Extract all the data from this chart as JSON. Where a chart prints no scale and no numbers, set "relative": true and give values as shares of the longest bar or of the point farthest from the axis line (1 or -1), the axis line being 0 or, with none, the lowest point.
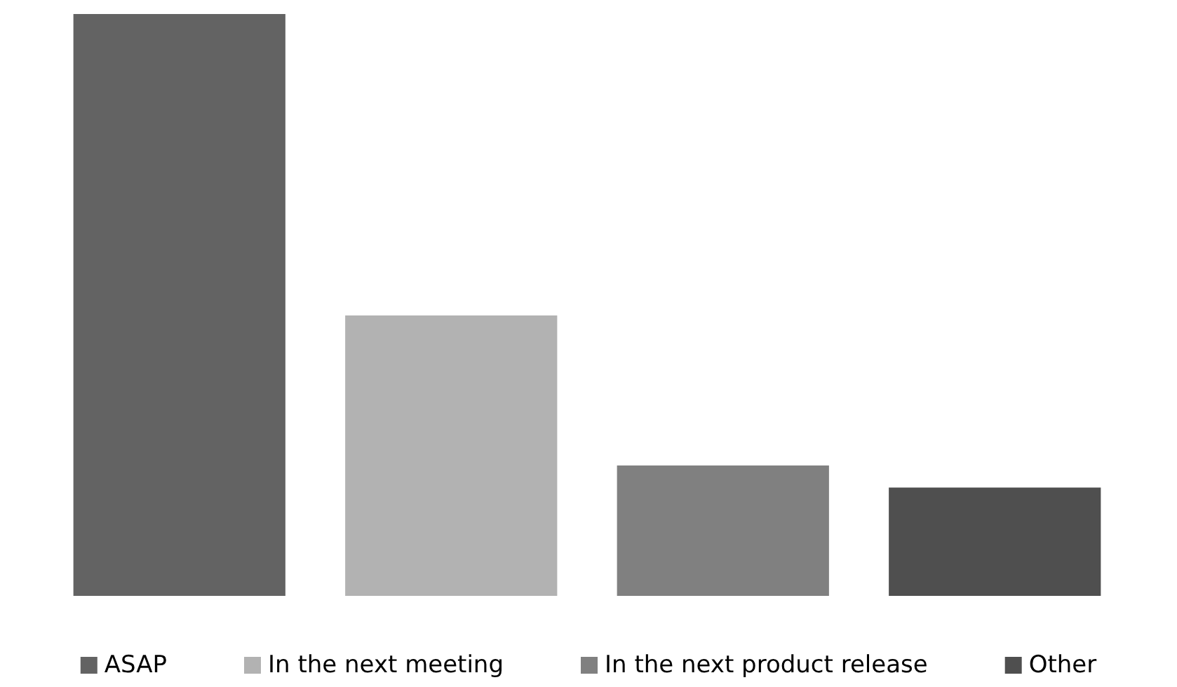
{
  "chart_data": {
    "type": "bar",
    "relative": true,
    "stacked": true,
    "categories": [
      null,
      null,
      null,
      null
    ],
    "series": [
      {
        "name": "ASAP",
        "color": "#636363",
        "values": [
          1,
          null,
          null,
          null
        ]
      },
      {
        "name": "In the next meeting",
        "color": "#b2b2b2",
        "values": [
          null,
          0.482,
          null,
          null
        ]
      },
      {
        "name": "In the next product release",
        "color": "#808080",
        "values": [
          null,
          null,
          0.224,
          null
        ]
      },
      {
        "name": "Other",
        "color": "#4f4f4f",
        "values": [
          null,
          null,
          null,
          0.186
        ]
      }
    ],
    "legend": "bottom"
  }
}
